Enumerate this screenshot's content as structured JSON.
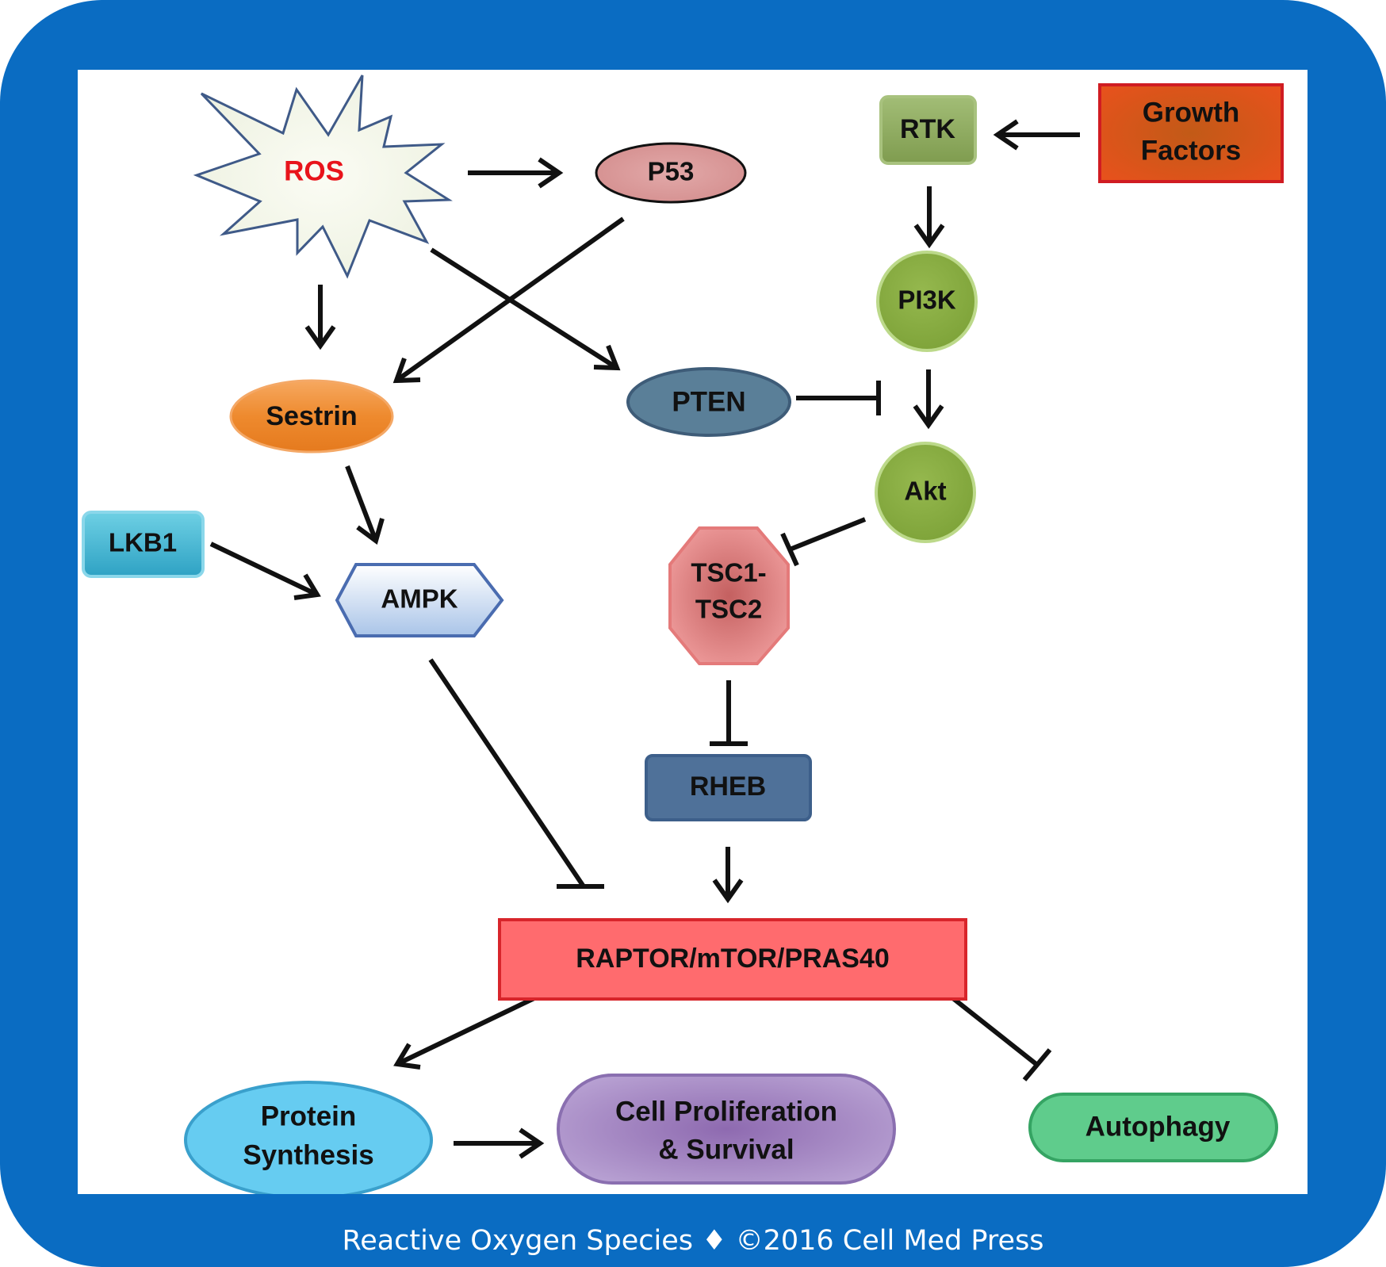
{
  "nodes": {
    "ros": "ROS",
    "p53": "P53",
    "rtk": "RTK",
    "growth_factors": [
      "Growth",
      "Factors"
    ],
    "pi3k": "PI3K",
    "sestrin": "Sestrin",
    "pten": "PTEN",
    "akt": "Akt",
    "lkb1": "LKB1",
    "ampk": "AMPK",
    "tsc": [
      "TSC1-",
      "TSC2"
    ],
    "rheb": "RHEB",
    "mtor": "RAPTOR/mTOR/PRAS40",
    "protein_synthesis": [
      "Protein",
      "Synthesis"
    ],
    "cell_proliferation": [
      "Cell Proliferation",
      "& Survival"
    ],
    "autophagy": "Autophagy"
  },
  "footer": "Reactive Oxygen Species ♦ ©2016 Cell Med Press",
  "colors": {
    "frame": "#0a6cc2",
    "ros_text": "#e8141b",
    "arrow": "#111111"
  }
}
